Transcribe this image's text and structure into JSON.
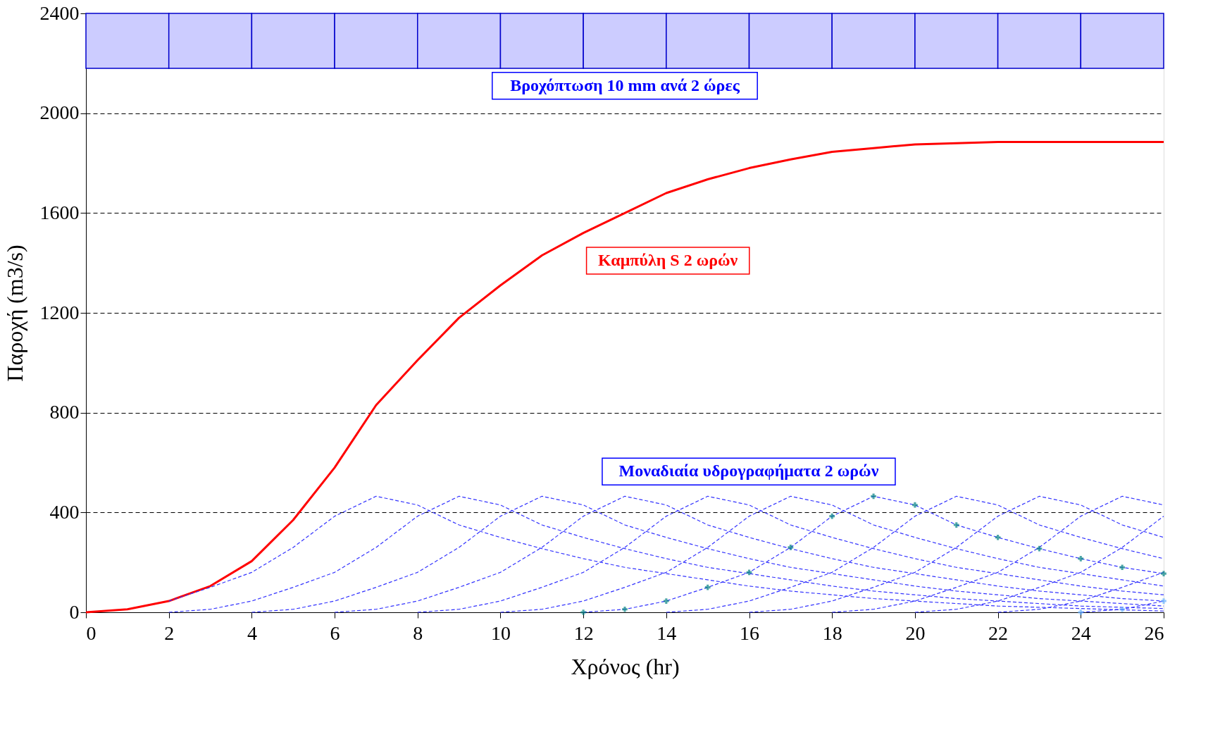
{
  "chart_data": {
    "type": "line",
    "xlabel": "Χρόνος (hr)",
    "ylabel": "Παροχή (m3/s)",
    "xlim": [
      0,
      26
    ],
    "xticks": [
      0,
      2,
      4,
      6,
      8,
      10,
      12,
      14,
      16,
      18,
      20,
      22,
      24,
      26
    ],
    "ylim": [
      0,
      2400
    ],
    "yticks": [
      0,
      400,
      800,
      1200,
      1600,
      2000,
      2400
    ],
    "grid": "y",
    "annotations": [
      "Βροχόπτωση 10 mm ανά 2 ώρες",
      "Καμπύλη S 2 ωρών",
      "Μοναδιαία υδρογραφήματα 2 ωρών"
    ],
    "series": [
      {
        "type": "bar",
        "color": "#ccccff",
        "x": [
          1,
          3,
          5,
          7,
          9,
          11,
          13,
          15,
          17,
          19,
          21,
          23,
          25
        ],
        "base": [
          2180,
          2180,
          2180,
          2180,
          2180,
          2180,
          2180,
          2180,
          2180,
          2180,
          2180,
          2180,
          2180
        ],
        "values": [
          220,
          220,
          220,
          220,
          220,
          220,
          220,
          220,
          220,
          220,
          220,
          220,
          220
        ]
      },
      {
        "color": "#ff0000",
        "line_style": "solid",
        "x": [
          0,
          1,
          2,
          3,
          4,
          5,
          6,
          7,
          8,
          9,
          10,
          11,
          12,
          13,
          14,
          15,
          16,
          17,
          18,
          19,
          20,
          21,
          22,
          23,
          24,
          25,
          26
        ],
        "values": [
          0,
          12,
          45,
          105,
          205,
          370,
          580,
          830,
          1010,
          1180,
          1310,
          1430,
          1520,
          1600,
          1680,
          1735,
          1780,
          1815,
          1845,
          1860,
          1875,
          1880,
          1885,
          1885,
          1885,
          1885,
          1885
        ]
      },
      {
        "type": "line",
        "color": "#3333ff",
        "line_style": "dashed",
        "x": [
          2,
          3,
          4,
          5,
          6,
          7,
          8,
          9,
          10,
          11,
          12,
          13,
          14,
          15,
          16,
          17,
          18,
          19,
          20,
          21,
          22,
          23,
          24,
          25,
          26
        ],
        "values": [
          45,
          100,
          160,
          260,
          385,
          465,
          430,
          350,
          300,
          255,
          215,
          180,
          155,
          130,
          105,
          85,
          70,
          55,
          45,
          35,
          25,
          20,
          15,
          10,
          5
        ]
      },
      {
        "type": "line",
        "color": "#3333ff",
        "line_style": "dashed",
        "x": [
          2,
          3,
          4,
          5,
          6,
          7,
          8,
          9,
          10,
          11,
          12,
          13,
          14,
          15,
          16,
          17,
          18,
          19,
          20,
          21,
          22,
          23,
          24,
          25,
          26
        ],
        "values": [
          0,
          12,
          45,
          100,
          160,
          260,
          385,
          465,
          430,
          350,
          300,
          255,
          215,
          180,
          155,
          130,
          105,
          85,
          70,
          55,
          45,
          35,
          25,
          20,
          15
        ]
      },
      {
        "type": "line",
        "color": "#3333ff",
        "line_style": "dashed",
        "x": [
          4,
          5,
          6,
          7,
          8,
          9,
          10,
          11,
          12,
          13,
          14,
          15,
          16,
          17,
          18,
          19,
          20,
          21,
          22,
          23,
          24,
          25,
          26
        ],
        "values": [
          0,
          12,
          45,
          100,
          160,
          260,
          385,
          465,
          430,
          350,
          300,
          255,
          215,
          180,
          155,
          130,
          105,
          85,
          70,
          55,
          45,
          35,
          25
        ]
      },
      {
        "type": "line",
        "color": "#3333ff",
        "line_style": "dashed",
        "x": [
          6,
          7,
          8,
          9,
          10,
          11,
          12,
          13,
          14,
          15,
          16,
          17,
          18,
          19,
          20,
          21,
          22,
          23,
          24,
          25,
          26
        ],
        "values": [
          0,
          12,
          45,
          100,
          160,
          260,
          385,
          465,
          430,
          350,
          300,
          255,
          215,
          180,
          155,
          130,
          105,
          85,
          70,
          55,
          45
        ]
      },
      {
        "type": "line",
        "color": "#3333ff",
        "line_style": "dashed",
        "x": [
          8,
          9,
          10,
          11,
          12,
          13,
          14,
          15,
          16,
          17,
          18,
          19,
          20,
          21,
          22,
          23,
          24,
          25,
          26
        ],
        "values": [
          0,
          12,
          45,
          100,
          160,
          260,
          385,
          465,
          430,
          350,
          300,
          255,
          215,
          180,
          155,
          130,
          105,
          85,
          70
        ]
      },
      {
        "type": "line",
        "color": "#3333ff",
        "line_style": "dashed",
        "x": [
          10,
          11,
          12,
          13,
          14,
          15,
          16,
          17,
          18,
          19,
          20,
          21,
          22,
          23,
          24,
          25,
          26
        ],
        "values": [
          0,
          12,
          45,
          100,
          160,
          260,
          385,
          465,
          430,
          350,
          300,
          255,
          215,
          180,
          155,
          130,
          105
        ]
      },
      {
        "type": "line",
        "color": "#3333ff",
        "line_style": "dashed",
        "x": [
          12,
          13,
          14,
          15,
          16,
          17,
          18,
          19,
          20,
          21,
          22,
          23,
          24,
          25,
          26
        ],
        "values": [
          0,
          12,
          45,
          100,
          160,
          260,
          385,
          465,
          430,
          350,
          300,
          255,
          215,
          180,
          155
        ]
      },
      {
        "type": "line",
        "color": "#3333ff",
        "line_style": "dashed",
        "x": [
          14,
          15,
          16,
          17,
          18,
          19,
          20,
          21,
          22,
          23,
          24,
          25,
          26
        ],
        "values": [
          0,
          12,
          45,
          100,
          160,
          260,
          385,
          465,
          430,
          350,
          300,
          255,
          215
        ]
      },
      {
        "type": "line",
        "color": "#3333ff",
        "line_style": "dashed",
        "x": [
          16,
          17,
          18,
          19,
          20,
          21,
          22,
          23,
          24,
          25,
          26
        ],
        "values": [
          0,
          12,
          45,
          100,
          160,
          260,
          385,
          465,
          430,
          350,
          300
        ]
      },
      {
        "type": "line",
        "color": "#3333ff",
        "line_style": "dashed",
        "x": [
          18,
          19,
          20,
          21,
          22,
          23,
          24,
          25,
          26
        ],
        "values": [
          0,
          12,
          45,
          100,
          160,
          260,
          385,
          465,
          430
        ]
      },
      {
        "type": "line",
        "color": "#3333ff",
        "line_style": "dashed",
        "x": [
          20,
          21,
          22,
          23,
          24,
          25,
          26
        ],
        "values": [
          0,
          12,
          45,
          100,
          160,
          260,
          385
        ]
      },
      {
        "type": "line",
        "color": "#3333ff",
        "line_style": "dashed",
        "x": [
          22,
          23,
          24,
          25,
          26
        ],
        "values": [
          0,
          12,
          45,
          100,
          160
        ]
      },
      {
        "type": "line",
        "color": "#3333ff",
        "line_style": "dashed",
        "x": [
          24,
          25,
          26
        ],
        "values": [
          0,
          12,
          45
        ]
      },
      {
        "type": "scatter",
        "color": "#008080",
        "marker": "cross",
        "x": [
          12,
          13,
          14,
          15,
          16,
          17,
          18,
          19,
          20,
          21,
          22,
          23,
          24,
          25,
          26
        ],
        "values": [
          0,
          12,
          45,
          100,
          160,
          260,
          385,
          465,
          430,
          350,
          300,
          255,
          215,
          180,
          155
        ]
      },
      {
        "type": "scatter",
        "color": "#66b2ff",
        "marker": "cross",
        "x": [
          24,
          25,
          26
        ],
        "values": [
          0,
          12,
          45
        ]
      }
    ]
  }
}
